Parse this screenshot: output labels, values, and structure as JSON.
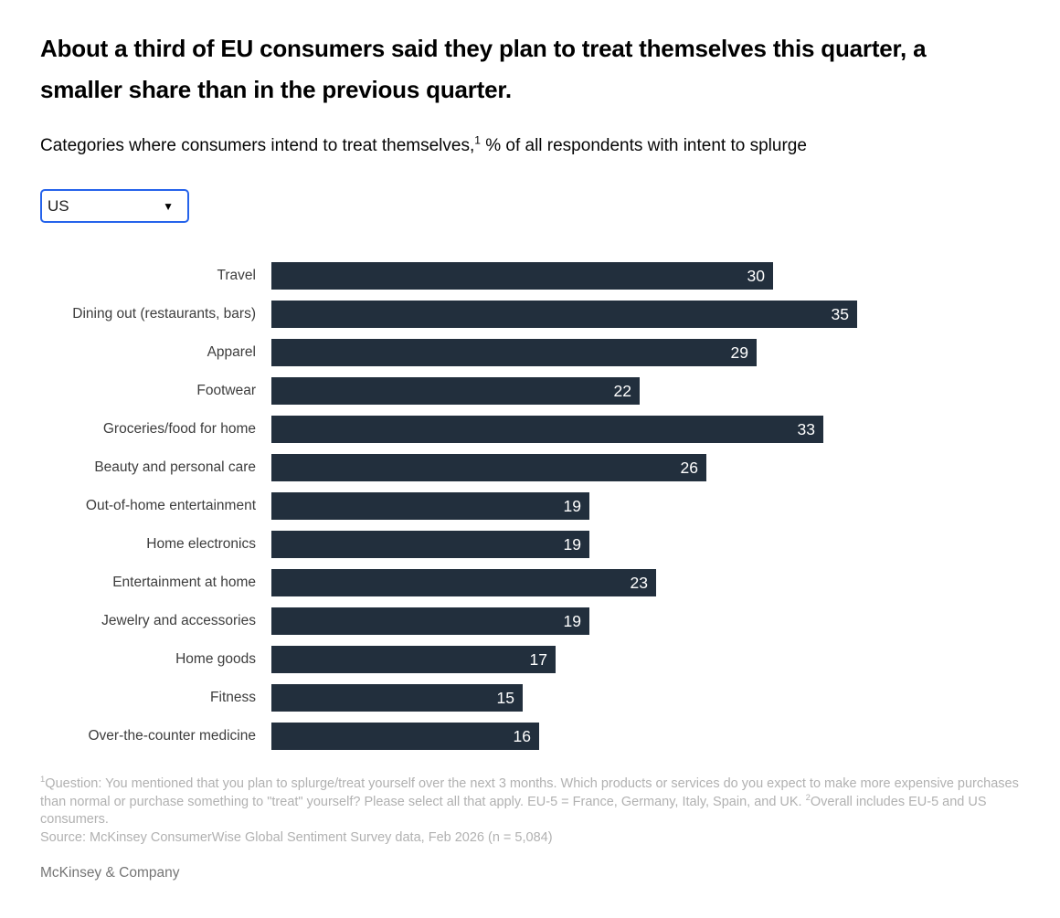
{
  "page": {
    "title": "About a third of EU consumers said they plan to treat themselves this quarter, a smaller share than in the previous quarter.",
    "subtitle_prefix": "Categories where consumers intend to treat themselves,",
    "subtitle_sup": "1",
    "subtitle_suffix": " % of all respondents with intent to splurge"
  },
  "region_dropdown": {
    "selected": "US",
    "caret_icon": "▼"
  },
  "chart_data": {
    "type": "bar",
    "orientation": "horizontal",
    "title": "Categories where consumers intend to treat themselves, % of all respondents with intent to splurge",
    "categories": [
      "Travel",
      "Dining out (restaurants, bars)",
      "Apparel",
      "Footwear",
      "Groceries/food for home",
      "Beauty and personal care",
      "Out-of-home entertainment",
      "Home electronics",
      "Entertainment at home",
      "Jewelry and accessories",
      "Home goods",
      "Fitness",
      "Over-the-counter medicine"
    ],
    "values": [
      30,
      35,
      29,
      22,
      33,
      26,
      19,
      19,
      23,
      19,
      17,
      15,
      16
    ],
    "xlim": [
      0,
      35
    ],
    "grid": false,
    "data_labels": "inside-end",
    "bar_color": "#222F3D",
    "value_label_color": "#ffffff"
  },
  "footnote": {
    "sup1": "1",
    "text1": "Question: You mentioned that you plan to splurge/treat yourself over the next 3 months. Which products or services do you expect to make more expensive purchases than normal or purchase something to \"treat\" yourself? Please select all that apply. EU-5 = France, Germany, Italy, Spain, and UK. ",
    "sup2": "2",
    "text2": "Overall includes EU-5 and US consumers.",
    "source": "Source: McKinsey ConsumerWise Global Sentiment Survey data, Feb 2026 (n = 5,084)"
  },
  "brand": "McKinsey & Company",
  "colors": {
    "accent_blue": "#2563eb",
    "bar_navy": "#222F3D",
    "footnote_gray": "#b1b1b1",
    "brand_gray": "#757575"
  }
}
